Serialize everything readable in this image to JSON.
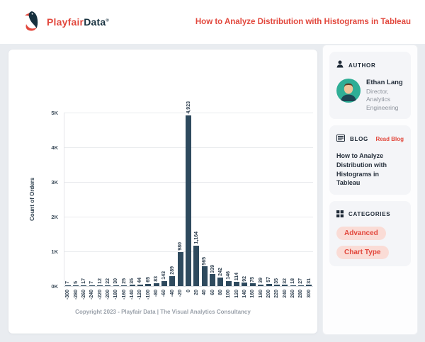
{
  "header": {
    "logo": {
      "brand_primary": "Playfair",
      "brand_secondary": "Data",
      "registered": "®"
    },
    "title": "How to Analyze Distribution with Histograms in Tableau"
  },
  "chart_data": {
    "type": "bar",
    "title": "",
    "xlabel": "",
    "ylabel": "Count of Orders",
    "categories": [
      -300,
      -280,
      -260,
      -240,
      -220,
      -200,
      -180,
      -160,
      -140,
      -120,
      -100,
      -80,
      -60,
      -40,
      -20,
      0,
      20,
      40,
      60,
      80,
      100,
      120,
      140,
      160,
      180,
      200,
      220,
      240,
      260,
      280,
      300
    ],
    "values": [
      7,
      5,
      17,
      7,
      12,
      22,
      30,
      25,
      35,
      44,
      65,
      83,
      143,
      289,
      980,
      4923,
      1164,
      565,
      339,
      242,
      146,
      114,
      92,
      75,
      39,
      57,
      35,
      32,
      18,
      27,
      31
    ],
    "ylim": [
      0,
      5000
    ],
    "yticks": {
      "labels": [
        "0K",
        "1K",
        "2K",
        "3K",
        "4K",
        "5K"
      ],
      "values": [
        0,
        1000,
        2000,
        3000,
        4000,
        5000
      ]
    },
    "grid": true,
    "legend": "none",
    "bar_color": "#2e4a5e",
    "label_rotation": -90
  },
  "footer": {
    "copyright": "Copyright 2023 - Playfair Data | The Visual Analytics Consultancy"
  },
  "sidebar": {
    "author": {
      "label": "AUTHOR",
      "name": "Ethan Lang",
      "role": "Director, Analytics Engineering"
    },
    "blog": {
      "label": "BLOG",
      "link": "Read Blog",
      "title": "How to Analyze Distribution with Histograms in Tableau"
    },
    "categories": {
      "label": "CATEGORIES",
      "tags": [
        "Advanced",
        "Chart Type"
      ]
    }
  },
  "colors": {
    "accent": "#e2483d",
    "bar": "#2e4a5e",
    "pill_bg": "#fadcd6",
    "navy": "#16303e"
  }
}
